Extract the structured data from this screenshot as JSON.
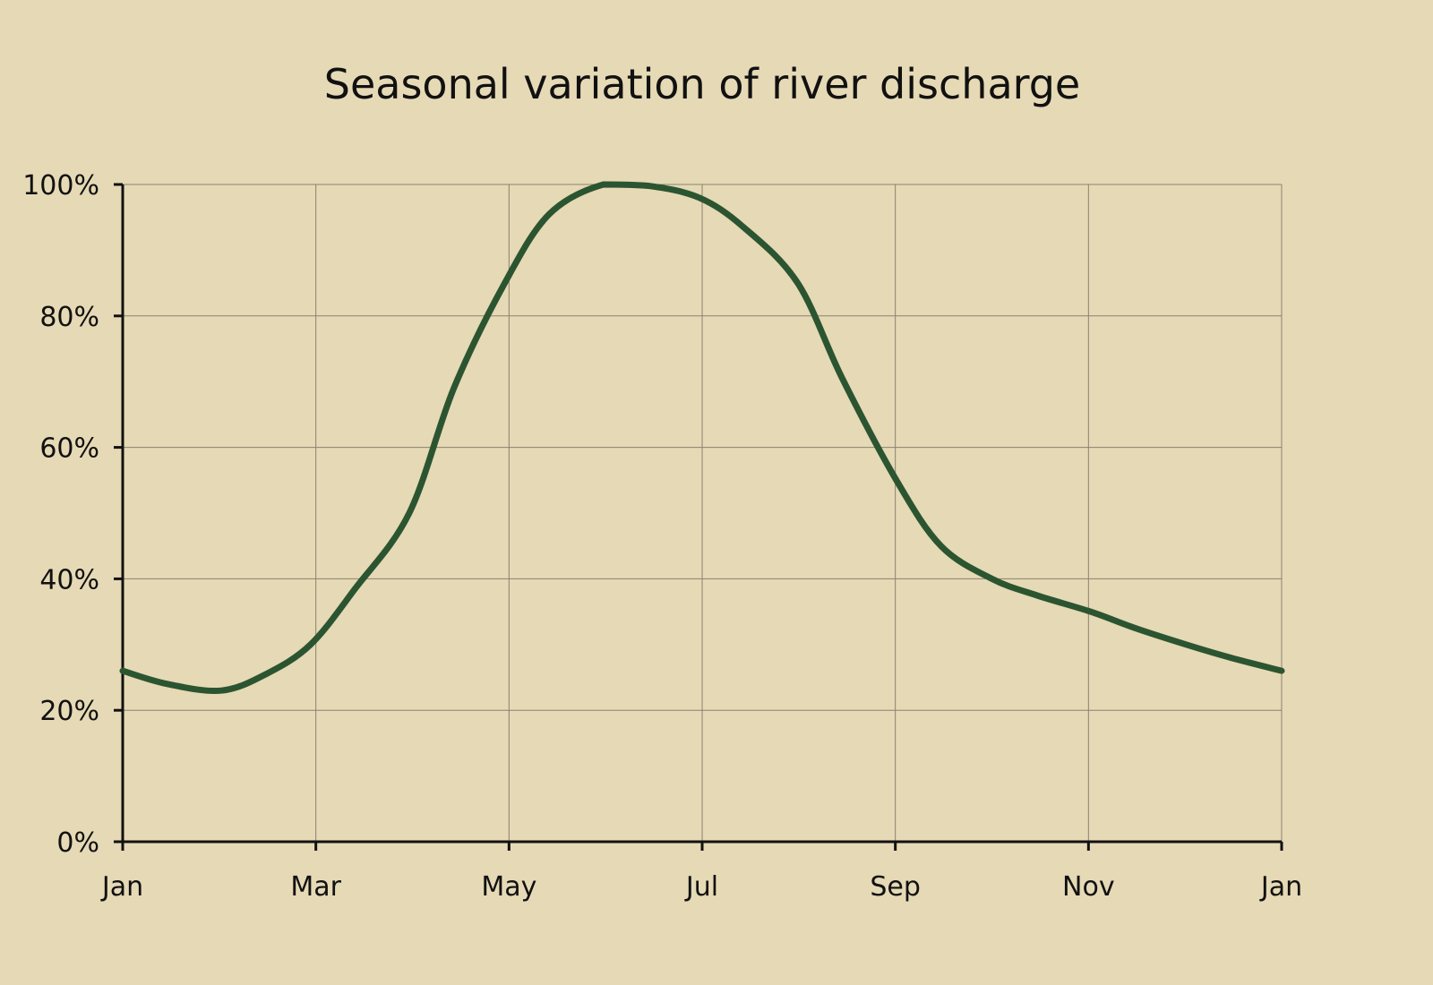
{
  "chart_data": {
    "type": "line",
    "title": "Seasonal variation of river discharge",
    "xlabel": "",
    "ylabel": "",
    "x_tick_labels": [
      "Jan",
      "Mar",
      "May",
      "Jul",
      "Sep",
      "Nov",
      "Jan"
    ],
    "y_tick_labels": [
      "0%",
      "20%",
      "40%",
      "60%",
      "80%",
      "100%"
    ],
    "ylim": [
      0,
      100
    ],
    "xlim": [
      "01-01",
      "12-31"
    ],
    "grid": true,
    "legend": "none",
    "colors": {
      "background": "#e6d9b5",
      "line": "#2b5530",
      "grid": "#8a8270",
      "axis": "#111111"
    },
    "series": [
      {
        "x": [
          "01-01",
          "01-15",
          "02-01",
          "02-15",
          "03-01",
          "03-15",
          "04-01",
          "04-15",
          "05-01",
          "05-15",
          "06-01",
          "06-15",
          "07-01",
          "07-15",
          "08-01",
          "08-15",
          "09-01",
          "09-15",
          "10-01",
          "10-15",
          "11-01",
          "11-15",
          "12-01",
          "12-15",
          "12-31"
        ],
        "values": [
          26,
          24,
          23,
          25.5,
          30,
          38.5,
          50,
          69,
          85,
          95.5,
          100,
          99.8,
          98,
          93.5,
          85,
          70.5,
          55,
          45,
          40,
          37.5,
          35,
          32.5,
          30,
          28,
          26
        ]
      }
    ]
  }
}
